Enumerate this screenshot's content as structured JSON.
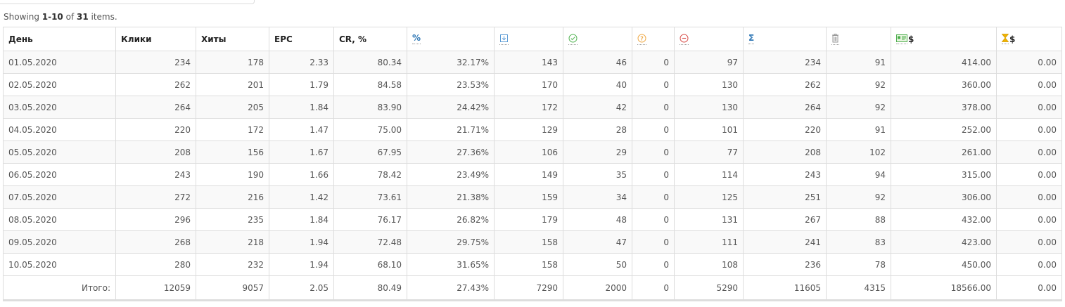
{
  "summary": {
    "prefix": "Showing ",
    "range": "1-10",
    "mid": " of ",
    "total": "31",
    "suffix": " items."
  },
  "columns": {
    "day": "День",
    "clicks": "Клики",
    "hits": "Хиты",
    "epc": "EPC",
    "cr": "CR, %",
    "percent": "%",
    "sum": "Σ",
    "dollar_money": "$",
    "dollar_hold": "$",
    "icons": [
      "percent-icon",
      "download-icon",
      "check-circle-icon",
      "question-circle-icon",
      "minus-circle-icon",
      "sigma-icon",
      "trash-icon",
      "money-card-icon",
      "hourglass-icon"
    ]
  },
  "colors": {
    "link": "#337ab7",
    "green": "#5cb85c",
    "orange": "#f0ad4e",
    "red": "#d9534f",
    "gold": "#f0b400"
  },
  "rows": [
    [
      "01.05.2020",
      "234",
      "178",
      "2.33",
      "80.34",
      "32.17%",
      "143",
      "46",
      "0",
      "97",
      "234",
      "91",
      "414.00",
      "0.00"
    ],
    [
      "02.05.2020",
      "262",
      "201",
      "1.79",
      "84.58",
      "23.53%",
      "170",
      "40",
      "0",
      "130",
      "262",
      "92",
      "360.00",
      "0.00"
    ],
    [
      "03.05.2020",
      "264",
      "205",
      "1.84",
      "83.90",
      "24.42%",
      "172",
      "42",
      "0",
      "130",
      "264",
      "92",
      "378.00",
      "0.00"
    ],
    [
      "04.05.2020",
      "220",
      "172",
      "1.47",
      "75.00",
      "21.71%",
      "129",
      "28",
      "0",
      "101",
      "220",
      "91",
      "252.00",
      "0.00"
    ],
    [
      "05.05.2020",
      "208",
      "156",
      "1.67",
      "67.95",
      "27.36%",
      "106",
      "29",
      "0",
      "77",
      "208",
      "102",
      "261.00",
      "0.00"
    ],
    [
      "06.05.2020",
      "243",
      "190",
      "1.66",
      "78.42",
      "23.49%",
      "149",
      "35",
      "0",
      "114",
      "243",
      "94",
      "315.00",
      "0.00"
    ],
    [
      "07.05.2020",
      "272",
      "216",
      "1.42",
      "73.61",
      "21.38%",
      "159",
      "34",
      "0",
      "125",
      "251",
      "92",
      "306.00",
      "0.00"
    ],
    [
      "08.05.2020",
      "296",
      "235",
      "1.84",
      "76.17",
      "26.82%",
      "179",
      "48",
      "0",
      "131",
      "267",
      "88",
      "432.00",
      "0.00"
    ],
    [
      "09.05.2020",
      "268",
      "218",
      "1.94",
      "72.48",
      "29.75%",
      "158",
      "47",
      "0",
      "111",
      "241",
      "83",
      "423.00",
      "0.00"
    ],
    [
      "10.05.2020",
      "280",
      "232",
      "1.94",
      "68.10",
      "31.65%",
      "158",
      "50",
      "0",
      "108",
      "236",
      "78",
      "450.00",
      "0.00"
    ]
  ],
  "totals": [
    "Итого:",
    "12059",
    "9057",
    "2.05",
    "80.49",
    "27.43%",
    "7290",
    "2000",
    "0",
    "5290",
    "11605",
    "4315",
    "18566.00",
    "0.00"
  ]
}
